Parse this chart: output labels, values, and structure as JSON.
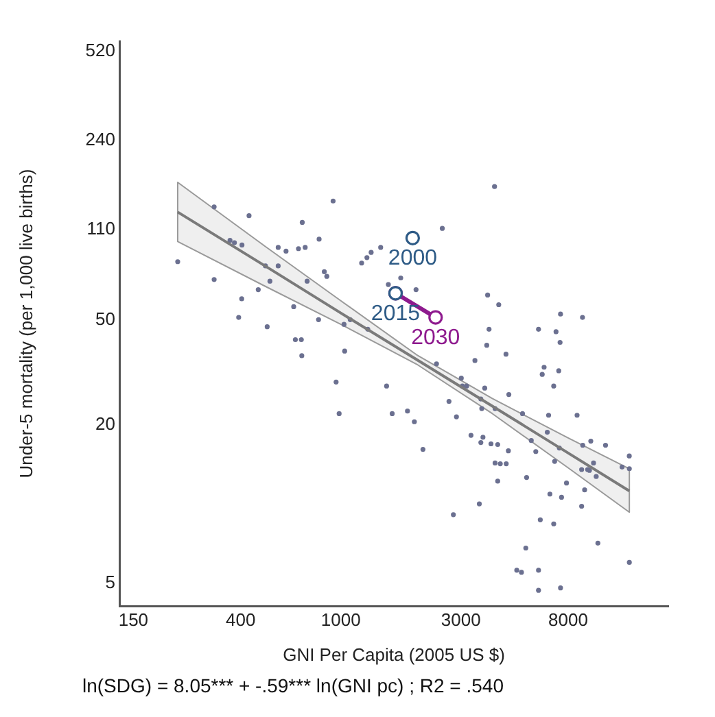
{
  "chart_data": {
    "type": "scatter",
    "xlabel": "GNI Per Capita (2005 US $)",
    "ylabel": "Under-5 mortality (per 1,000 live births)",
    "log": "xy",
    "xlim": [
      132,
      20000
    ],
    "ylim": [
      4.1,
      570
    ],
    "xticks": [
      150,
      400,
      1000,
      3000,
      8000
    ],
    "yticks": [
      5,
      20,
      50,
      110,
      240,
      520
    ],
    "legend": false,
    "marker": "circle",
    "series": [
      {
        "color": "#6b7090",
        "x": [
          225,
          314,
          314,
          432,
          363,
          378,
          405,
          404,
          393,
          470,
          510,
          502,
          523,
          564,
          564,
          606,
          650,
          660,
          697,
          703,
          679,
          722,
          735,
          820,
          816,
          860,
          880,
          932,
          1030,
          1090,
          1210,
          1270,
          1320,
          1280,
          700,
          1036,
          958,
          985,
          4080,
          2530,
          1440,
          1545,
          1730,
          1990,
          3830,
          4240,
          7460,
          9120,
          3880,
          6100,
          7160,
          7430,
          3800,
          3410,
          4530,
          6310,
          6420,
          7340,
          7010,
          2400,
          3010,
          3160,
          3040,
          3730,
          4650,
          1520,
          2690,
          3600,
          3630,
          4100,
          5270,
          6690,
          8680,
          1600,
          1840,
          1960,
          2880,
          6610,
          3290,
          3600,
          3950,
          4200,
          3670,
          5710,
          5950,
          4630,
          2120,
          7070,
          7380,
          9140,
          9840,
          11260,
          13990,
          13100,
          14000,
          9050,
          9560,
          9720,
          10090,
          10340,
          4100,
          4300,
          4540,
          5470,
          4200,
          7880,
          6770,
          7530,
          9300,
          9050,
          3550,
          2800,
          6200,
          7010,
          10500,
          5430,
          5000,
          5220,
          6100,
          14000,
          6100,
          7460
        ],
        "values": [
          83,
          134,
          71,
          124,
          100,
          98,
          96,
          60,
          51,
          65,
          47,
          80,
          70,
          94,
          80,
          91,
          56,
          42,
          42,
          117,
          93,
          94,
          70,
          101,
          50,
          76,
          73,
          141,
          48,
          50,
          82,
          86,
          90,
          46,
          36.5,
          38,
          29,
          22,
          160,
          111,
          94,
          68,
          72,
          65,
          62,
          57,
          52.5,
          51,
          46,
          46,
          45,
          41,
          40,
          35,
          37,
          31,
          33,
          32,
          28,
          34,
          30,
          28,
          28,
          27.5,
          26,
          28,
          24.5,
          25,
          23,
          23,
          22,
          21.7,
          21.7,
          22,
          22.5,
          20.5,
          21.4,
          18.7,
          18.2,
          17.1,
          16.9,
          16.8,
          17.9,
          17.4,
          15.8,
          15.9,
          16.1,
          14.5,
          16.3,
          16.7,
          17.3,
          16.7,
          15.2,
          13.8,
          13.6,
          13.5,
          13.5,
          13.4,
          14.3,
          12.7,
          14.3,
          14.2,
          14.2,
          12.6,
          12.2,
          12,
          10.9,
          10.6,
          11.3,
          9.8,
          10,
          9.1,
          8.7,
          8.4,
          7.1,
          6.8,
          5.6,
          5.5,
          5.6,
          6,
          4.7,
          4.8
        ]
      },
      {
        "type": "line",
        "color": "#7a7a7a",
        "marker": "none",
        "x": [
          225,
          500,
          1000,
          2000,
          4000,
          8000,
          14000
        ],
        "values": [
          128,
          80,
          53,
          35.3,
          23.5,
          15.6,
          11.2
        ],
        "lower": [
          99,
          67,
          48,
          33.9,
          22,
          13.7,
          9.3
        ],
        "upper": [
          166,
          95,
          59,
          36.8,
          25.1,
          17.8,
          13.6
        ]
      },
      {
        "type": "line",
        "color": "#8e1a8e",
        "x": [
          1650,
          2380
        ],
        "values": [
          63,
          51
        ]
      },
      {
        "type": "scatter",
        "color": "#2e5b86",
        "x": [
          1930,
          1650
        ],
        "values": [
          102,
          63
        ]
      }
    ],
    "annotations": [
      {
        "text": "2000",
        "x": 1930,
        "y": 102
      },
      {
        "text": "2015",
        "x": 1650,
        "y": 63
      },
      {
        "text": "2030",
        "x": 2380,
        "y": 51
      },
      "ln(SDG) = 8.05*** + -.59*** ln(GNI pc) ; R2 = .540"
    ]
  }
}
